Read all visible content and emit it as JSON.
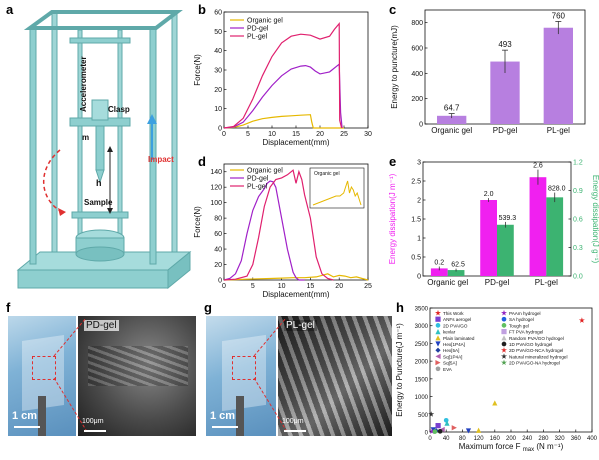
{
  "panels": {
    "a": "a",
    "b": "b",
    "c": "c",
    "d": "d",
    "e": "e",
    "f": "f",
    "g": "g",
    "h": "h"
  },
  "apparatus": {
    "accelerometer": "Accelerometer",
    "clasp": "Clasp",
    "m": "m",
    "h": "h",
    "impact": "Impact",
    "sample": "Sample",
    "colors": {
      "frame": "#8ecfcf",
      "frame_dark": "#5fa9a9",
      "arrow_red": "#e03030",
      "arrow_blue": "#3ca0e0"
    }
  },
  "photos": {
    "f_label": "PD-gel",
    "g_label": "PL-gel",
    "scale_cm": "1 cm",
    "scale_um": "100μm"
  },
  "chart_data": [
    {
      "id": "b",
      "type": "line",
      "xlabel": "Displacement(mm)",
      "ylabel": "Force(N)",
      "xlim": [
        0,
        30
      ],
      "ylim": [
        0,
        60
      ],
      "xticks": [
        0,
        5,
        10,
        15,
        20,
        25,
        30
      ],
      "yticks": [
        0,
        10,
        20,
        30,
        40,
        50,
        60
      ],
      "legend": "top-left",
      "series": [
        {
          "name": "Organic gel",
          "color": "#e6b800",
          "x": [
            0,
            2,
            4,
            6,
            8,
            10,
            12,
            14,
            16,
            18,
            18.3,
            18.6,
            25
          ],
          "y": [
            0,
            0.3,
            1.5,
            3.5,
            4.8,
            5.5,
            6,
            6.3,
            6.6,
            6.9,
            3,
            0,
            0
          ]
        },
        {
          "name": "PD-gel",
          "color": "#a020c8",
          "x": [
            0,
            2,
            4,
            6,
            8,
            10,
            12,
            14,
            16,
            17,
            18,
            19,
            20,
            22,
            24,
            24.3,
            24.6
          ],
          "y": [
            0,
            0.5,
            3,
            9,
            16,
            22,
            27,
            30.5,
            32,
            32.3,
            31.5,
            29.5,
            28,
            29,
            33,
            8,
            0
          ]
        },
        {
          "name": "PL-gel",
          "color": "#e0206e",
          "x": [
            0,
            2,
            4,
            6,
            8,
            10,
            12,
            14,
            16,
            18,
            20,
            22,
            23,
            24,
            24.1,
            24.5
          ],
          "y": [
            0,
            0.8,
            5,
            15,
            27,
            37,
            44,
            47.5,
            48.5,
            48,
            46,
            47.5,
            51,
            54,
            4,
            0
          ]
        }
      ]
    },
    {
      "id": "c",
      "type": "bar",
      "ylabel": "Energy to puncture(mJ)",
      "categories": [
        "Organic gel",
        "PD-gel",
        "PL-gel"
      ],
      "values": [
        64.7,
        493,
        760
      ],
      "errors": [
        18,
        90,
        50
      ],
      "data_labels": [
        "64.7",
        "493",
        "760"
      ],
      "ylim": [
        0,
        900
      ],
      "yticks": [
        0,
        200,
        400,
        600,
        800
      ],
      "color": "#b77fe0"
    },
    {
      "id": "d",
      "type": "line",
      "xlabel": "Displacement(mm)",
      "ylabel": "Force(N)",
      "xlim": [
        0,
        25
      ],
      "ylim": [
        0,
        150
      ],
      "xticks": [
        0,
        5,
        10,
        15,
        20,
        25
      ],
      "yticks": [
        0,
        20,
        40,
        60,
        80,
        100,
        120,
        140
      ],
      "legend": "top-left",
      "inset_label": "Organic gel",
      "series": [
        {
          "name": "Organic gel",
          "color": "#e6b800",
          "x": [
            0,
            2,
            4,
            6,
            8,
            10,
            12,
            14,
            16,
            17,
            18,
            19,
            20,
            21,
            22,
            23,
            24,
            25
          ],
          "y": [
            0,
            0.5,
            1,
            1.5,
            2,
            2.5,
            3,
            3,
            4,
            6,
            8,
            4,
            6,
            5,
            3,
            4,
            2,
            0
          ]
        },
        {
          "name": "PD-gel",
          "color": "#a020c8",
          "x": [
            0,
            1,
            2,
            3,
            4,
            5,
            6,
            7,
            7.5,
            8,
            8.5,
            9,
            10,
            11,
            12,
            12.5,
            13,
            14
          ],
          "y": [
            0,
            2,
            8,
            25,
            60,
            90,
            108,
            118,
            125,
            128,
            127,
            120,
            80,
            40,
            10,
            3,
            0,
            0
          ]
        },
        {
          "name": "PL-gel",
          "color": "#e0206e",
          "x": [
            0,
            2,
            4,
            5,
            6,
            7,
            8,
            9,
            10,
            11,
            12,
            12.5,
            13,
            13.5,
            14,
            15,
            16,
            17,
            18,
            19
          ],
          "y": [
            0,
            1,
            5,
            20,
            55,
            95,
            120,
            130,
            132,
            136,
            142,
            125,
            140,
            130,
            110,
            80,
            30,
            8,
            2,
            0
          ]
        }
      ]
    },
    {
      "id": "e",
      "type": "bar",
      "ylabel": "Energy dissipation(J m⁻¹)",
      "ylabel2": "Energy dissipation(J g⁻¹)",
      "categories": [
        "Organic gel",
        "PD-gel",
        "PL-gel"
      ],
      "series": [
        {
          "name": "Energy dissipation(J m⁻¹)",
          "color": "#f020f0",
          "values": [
            0.2,
            2.0,
            2.6
          ],
          "errors": [
            0.05,
            0.05,
            0.2
          ],
          "data_labels": [
            "0.2",
            "2.0",
            "2.6"
          ]
        },
        {
          "name": "Energy dissipation(J g⁻¹)",
          "color": "#3cb371",
          "values": [
            62.5,
            539.3,
            828.0
          ],
          "errors": [
            15,
            30,
            50
          ],
          "data_labels": [
            "62.5",
            "539.3",
            "828.0"
          ]
        }
      ],
      "ylim": [
        0,
        3.0
      ],
      "yticks": [
        0,
        0.5,
        1.0,
        1.5,
        2.0,
        2.5,
        3.0
      ],
      "ylim2": [
        0,
        1.2
      ],
      "yticks2": [
        0,
        0.3,
        0.6,
        0.9,
        1.2
      ],
      "y2_tick_labels": [
        "0.0",
        "0.3",
        "0.6",
        "0.9",
        "1.2"
      ]
    },
    {
      "id": "h",
      "type": "scatter",
      "xlabel": "Maximum force F",
      "xlabel_sub": "max",
      "xlabel_unit": "(N m⁻¹)",
      "ylabel": "Energy to Puncture(J m⁻¹)",
      "xlim": [
        0,
        400
      ],
      "ylim": [
        0,
        3500
      ],
      "xticks": [
        0,
        40,
        80,
        120,
        160,
        200,
        240,
        280,
        320,
        360,
        400
      ],
      "yticks": [
        0,
        500,
        1000,
        1500,
        2000,
        2500,
        3000,
        3500
      ],
      "legend": [
        {
          "name": "This Work",
          "color": "#e02020",
          "shape": "star"
        },
        {
          "name": "ANFs aerogel",
          "color": "#7a3fd0",
          "shape": "square"
        },
        {
          "name": "2D PVA/GO",
          "color": "#30c0e0",
          "shape": "circle"
        },
        {
          "name": "kevlar",
          "color": "#30c0c0",
          "shape": "triangle"
        },
        {
          "name": "Plain laminated",
          "color": "#e0c020",
          "shape": "triangle"
        },
        {
          "name": "Hex[1P4A]",
          "color": "#2040c0",
          "shape": "tri-down"
        },
        {
          "name": "Hex[5A]",
          "color": "#2040a0",
          "shape": "diamond"
        },
        {
          "name": "Sq[1P4A]",
          "color": "#b060b0",
          "shape": "tri-left"
        },
        {
          "name": "Sq[5A]",
          "color": "#e06060",
          "shape": "tri-right"
        },
        {
          "name": "EVA",
          "color": "#a0a0a0",
          "shape": "hexagon"
        },
        {
          "name": "PAAm hydrogel",
          "color": "#9020c0",
          "shape": "star"
        },
        {
          "name": "SA hydrogel",
          "color": "#2060e0",
          "shape": "circle"
        },
        {
          "name": "Tough gel",
          "color": "#60c060",
          "shape": "circle"
        },
        {
          "name": "FT PVA hydrogel",
          "color": "#c0a0e0",
          "shape": "square"
        },
        {
          "name": "Random PVA/GO hydrogel",
          "color": "#c0c0c0",
          "shape": "triangle"
        },
        {
          "name": "1D PVA/GO hydrogel",
          "color": "#202020",
          "shape": "circle"
        },
        {
          "name": "2D PVA/GO-NCA hydrogel",
          "color": "#e03030",
          "shape": "star"
        },
        {
          "name": "Natural mineralized hydrogel",
          "color": "#303030",
          "shape": "star"
        },
        {
          "name": "2D PVA/GO-NA hydrogel",
          "color": "#50a050",
          "shape": "star"
        }
      ],
      "points": [
        {
          "x": 375,
          "y": 3150,
          "color": "#e02020",
          "shape": "star"
        },
        {
          "x": 160,
          "y": 820,
          "color": "#e0c020",
          "shape": "triangle"
        },
        {
          "x": 40,
          "y": 330,
          "color": "#30c0e0",
          "shape": "circle"
        },
        {
          "x": 42,
          "y": 250,
          "color": "#30c0c0",
          "shape": "triangle"
        },
        {
          "x": 20,
          "y": 180,
          "color": "#7a3fd0",
          "shape": "square"
        },
        {
          "x": 60,
          "y": 120,
          "color": "#e06060",
          "shape": "tri-right"
        },
        {
          "x": 8,
          "y": 60,
          "color": "#2040c0",
          "shape": "tri-down"
        },
        {
          "x": 15,
          "y": 40,
          "color": "#2040a0",
          "shape": "diamond"
        },
        {
          "x": 30,
          "y": 70,
          "color": "#b060b0",
          "shape": "tri-left"
        },
        {
          "x": 120,
          "y": 50,
          "color": "#e0c020",
          "shape": "triangle"
        },
        {
          "x": 95,
          "y": 30,
          "color": "#2040c0",
          "shape": "tri-down"
        },
        {
          "x": 5,
          "y": 15,
          "color": "#9020c0",
          "shape": "star"
        },
        {
          "x": 12,
          "y": 10,
          "color": "#60c060",
          "shape": "circle"
        },
        {
          "x": 3,
          "y": 500,
          "color": "#303030",
          "shape": "star"
        },
        {
          "x": 25,
          "y": 20,
          "color": "#202020",
          "shape": "circle"
        }
      ]
    }
  ]
}
